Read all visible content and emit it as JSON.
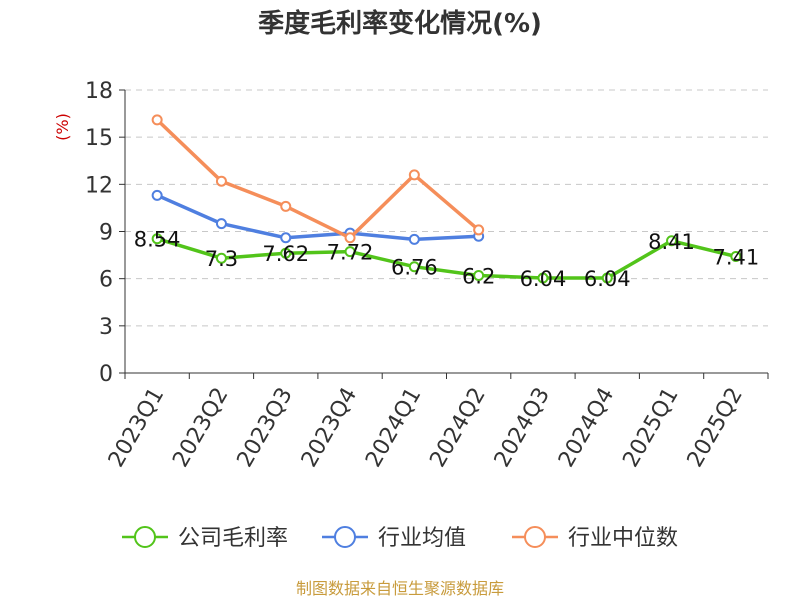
{
  "chart_data": {
    "type": "line",
    "title": "季度毛利率变化情况(%)",
    "ylabel": "(%)",
    "categories": [
      "2023Q1",
      "2023Q2",
      "2023Q3",
      "2023Q4",
      "2024Q1",
      "2024Q2",
      "2024Q3",
      "2024Q4",
      "2025Q1",
      "2025Q2"
    ],
    "ylim": [
      0,
      18
    ],
    "yticks": [
      0,
      3,
      6,
      9,
      12,
      15,
      18
    ],
    "grid": true,
    "legend_position": "bottom",
    "series": [
      {
        "name": "公司毛利率",
        "color": "#52c41a",
        "values": [
          8.54,
          7.3,
          7.62,
          7.72,
          6.76,
          6.2,
          6.04,
          6.04,
          8.41,
          7.41
        ],
        "labels": [
          "8.54",
          "7.3",
          "7.62",
          "7.72",
          "6.76",
          "6.2",
          "6.04",
          "6.04",
          "8.41",
          "7.41"
        ]
      },
      {
        "name": "行业均值",
        "color": "#4f7fe0",
        "values": [
          11.3,
          9.5,
          8.6,
          8.9,
          8.5,
          8.7,
          null,
          null,
          null,
          null
        ]
      },
      {
        "name": "行业中位数",
        "color": "#f58e5a",
        "values": [
          16.1,
          12.2,
          10.6,
          8.6,
          12.6,
          9.1,
          null,
          null,
          null,
          null
        ]
      }
    ]
  },
  "source_text": "制图数据来自恒生聚源数据库"
}
